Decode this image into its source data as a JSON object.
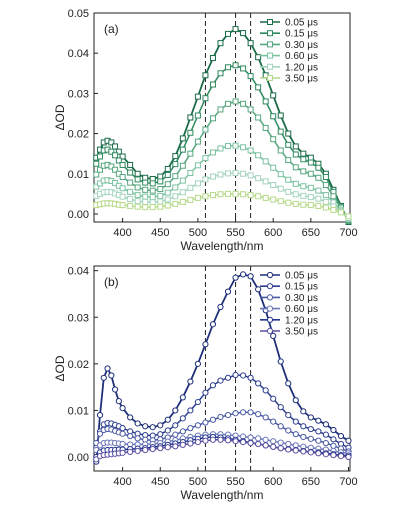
{
  "chart_data": [
    {
      "type": "line",
      "panel_label": "(a)",
      "xlabel": "Wavelength/nm",
      "ylabel": "ΔOD",
      "xlim": [
        362,
        702
      ],
      "ylim": [
        -0.002,
        0.05
      ],
      "xticks": [
        400,
        450,
        500,
        550,
        600,
        650,
        700
      ],
      "yticks": [
        0.0,
        0.01,
        0.02,
        0.03,
        0.04,
        0.05
      ],
      "ytick_labels": [
        "0.00",
        "0.01",
        "0.02",
        "0.03",
        "0.04",
        "0.05"
      ],
      "vlines": [
        510,
        550,
        570
      ],
      "legend_position": "top-right",
      "marker": "square",
      "x": [
        365,
        370,
        375,
        380,
        385,
        390,
        395,
        400,
        410,
        420,
        430,
        440,
        450,
        460,
        470,
        480,
        490,
        500,
        510,
        520,
        530,
        540,
        550,
        560,
        570,
        580,
        590,
        600,
        610,
        620,
        630,
        640,
        650,
        660,
        670,
        680,
        690,
        700
      ],
      "series": [
        {
          "name": "0.05 μs",
          "color": "#1a6b47",
          "values": [
            0.014,
            0.016,
            0.0178,
            0.0182,
            0.0178,
            0.0168,
            0.0155,
            0.0143,
            0.0122,
            0.01,
            0.009,
            0.0087,
            0.0093,
            0.0112,
            0.0144,
            0.0188,
            0.024,
            0.0292,
            0.0345,
            0.0388,
            0.0425,
            0.0448,
            0.046,
            0.045,
            0.0425,
            0.039,
            0.0345,
            0.0295,
            0.0245,
            0.02,
            0.0168,
            0.015,
            0.014,
            0.0125,
            0.01,
            0.006,
            0.002,
            -0.002
          ]
        },
        {
          "name": "0.15 μs",
          "color": "#2e8a5e",
          "values": [
            0.0125,
            0.0143,
            0.0158,
            0.016,
            0.0155,
            0.0146,
            0.0133,
            0.0122,
            0.0103,
            0.0086,
            0.0078,
            0.0076,
            0.0081,
            0.0097,
            0.0124,
            0.016,
            0.0202,
            0.0245,
            0.0288,
            0.0322,
            0.035,
            0.0365,
            0.037,
            0.0362,
            0.0343,
            0.0315,
            0.028,
            0.0243,
            0.0205,
            0.0172,
            0.0148,
            0.0136,
            0.0128,
            0.0115,
            0.0092,
            0.0055,
            0.0018,
            -0.0018
          ]
        },
        {
          "name": "0.30 μs",
          "color": "#56a77d",
          "values": [
            0.0098,
            0.011,
            0.012,
            0.0122,
            0.0118,
            0.011,
            0.01,
            0.0092,
            0.0078,
            0.0066,
            0.006,
            0.0058,
            0.0062,
            0.0074,
            0.0094,
            0.012,
            0.015,
            0.018,
            0.021,
            0.0238,
            0.026,
            0.0274,
            0.028,
            0.0274,
            0.026,
            0.024,
            0.0214,
            0.0186,
            0.0158,
            0.0134,
            0.0116,
            0.0106,
            0.01,
            0.009,
            0.0072,
            0.0044,
            0.0014,
            -0.0015
          ]
        },
        {
          "name": "0.60 μs",
          "color": "#7cc3a0",
          "values": [
            0.0068,
            0.0076,
            0.0083,
            0.0084,
            0.0082,
            0.0077,
            0.007,
            0.0064,
            0.0055,
            0.0047,
            0.0043,
            0.0042,
            0.0045,
            0.0053,
            0.0066,
            0.0083,
            0.0102,
            0.0121,
            0.0139,
            0.0153,
            0.0163,
            0.0169,
            0.017,
            0.0166,
            0.0158,
            0.0146,
            0.0131,
            0.0115,
            0.0099,
            0.0085,
            0.0075,
            0.0069,
            0.0065,
            0.0058,
            0.0047,
            0.0029,
            0.0009,
            -0.0012
          ]
        },
        {
          "name": "1.20 μs",
          "color": "#a4d4be",
          "values": [
            0.0045,
            0.005,
            0.0054,
            0.0055,
            0.0054,
            0.0051,
            0.0047,
            0.0043,
            0.0037,
            0.0032,
            0.003,
            0.0029,
            0.0031,
            0.0036,
            0.0044,
            0.0054,
            0.0065,
            0.0076,
            0.0086,
            0.0093,
            0.0098,
            0.0101,
            0.0102,
            0.01,
            0.0096,
            0.0089,
            0.0081,
            0.0072,
            0.0063,
            0.0055,
            0.0049,
            0.0045,
            0.0042,
            0.0038,
            0.003,
            0.0019,
            0.0006,
            -0.001
          ]
        },
        {
          "name": "3.50 μs",
          "color": "#b6d98a",
          "values": [
            0.0022,
            0.0024,
            0.0026,
            0.0027,
            0.0026,
            0.0025,
            0.0023,
            0.0022,
            0.002,
            0.0018,
            0.0017,
            0.0017,
            0.0018,
            0.0021,
            0.0025,
            0.003,
            0.0035,
            0.004,
            0.0044,
            0.0047,
            0.0049,
            0.005,
            0.005,
            0.0049,
            0.0047,
            0.0044,
            0.004,
            0.0036,
            0.0032,
            0.0028,
            0.0025,
            0.0023,
            0.0022,
            0.002,
            0.0016,
            0.001,
            0.0004,
            -0.0006
          ]
        }
      ]
    },
    {
      "type": "line",
      "panel_label": "(b)",
      "xlabel": "Wavelength/nm",
      "ylabel": "ΔOD",
      "xlim": [
        362,
        702
      ],
      "ylim": [
        -0.003,
        0.041
      ],
      "xticks": [
        400,
        450,
        500,
        550,
        600,
        650,
        700
      ],
      "yticks": [
        0.0,
        0.01,
        0.02,
        0.03,
        0.04
      ],
      "ytick_labels": [
        "0.00",
        "0.01",
        "0.02",
        "0.03",
        "0.04"
      ],
      "vlines": [
        510,
        550,
        570
      ],
      "legend_position": "top-right",
      "marker": "circle",
      "x": [
        365,
        370,
        375,
        380,
        385,
        390,
        395,
        400,
        410,
        420,
        430,
        440,
        450,
        460,
        470,
        480,
        490,
        500,
        510,
        520,
        530,
        540,
        550,
        560,
        570,
        580,
        590,
        600,
        610,
        620,
        630,
        640,
        650,
        660,
        670,
        680,
        690,
        700
      ],
      "series": [
        {
          "name": "0.05 μs",
          "color": "#1f2f7a",
          "values": [
            -0.001,
            0.009,
            0.017,
            0.019,
            0.0175,
            0.0145,
            0.012,
            0.0105,
            0.0085,
            0.0072,
            0.0066,
            0.0064,
            0.0068,
            0.008,
            0.01,
            0.0128,
            0.0162,
            0.02,
            0.0242,
            0.0285,
            0.0322,
            0.0355,
            0.0385,
            0.0392,
            0.0388,
            0.036,
            0.0315,
            0.026,
            0.0205,
            0.0158,
            0.0122,
            0.0098,
            0.0085,
            0.0078,
            0.007,
            0.0058,
            0.0045,
            0.0035
          ]
        },
        {
          "name": "0.15 μs",
          "color": "#2e3f8f",
          "values": [
            0.002,
            0.0055,
            0.007,
            0.0073,
            0.0072,
            0.0069,
            0.0066,
            0.0062,
            0.0055,
            0.005,
            0.0047,
            0.0046,
            0.0049,
            0.0057,
            0.0068,
            0.0083,
            0.01,
            0.0118,
            0.0138,
            0.0154,
            0.0164,
            0.017,
            0.0176,
            0.0175,
            0.017,
            0.0158,
            0.0143,
            0.0125,
            0.0107,
            0.009,
            0.0076,
            0.0066,
            0.006,
            0.0055,
            0.0048,
            0.0038,
            0.0028,
            0.002
          ]
        },
        {
          "name": "0.30 μs",
          "color": "#4a5aa3",
          "values": [
            0.003,
            0.005,
            0.0058,
            0.006,
            0.0059,
            0.0056,
            0.0053,
            0.005,
            0.0045,
            0.004,
            0.0037,
            0.0036,
            0.0038,
            0.0042,
            0.0048,
            0.0055,
            0.0062,
            0.0068,
            0.0074,
            0.008,
            0.0086,
            0.009,
            0.0094,
            0.0096,
            0.0096,
            0.0092,
            0.0085,
            0.0076,
            0.0066,
            0.0057,
            0.0049,
            0.0043,
            0.0039,
            0.0035,
            0.003,
            0.0024,
            0.0018,
            0.0012
          ]
        },
        {
          "name": "0.60 μs",
          "color": "#6b76b8",
          "values": [
            0.0015,
            0.0025,
            0.003,
            0.0031,
            0.0031,
            0.003,
            0.0029,
            0.0028,
            0.0027,
            0.0027,
            0.0027,
            0.0028,
            0.003,
            0.0033,
            0.0036,
            0.004,
            0.0043,
            0.0046,
            0.0048,
            0.0049,
            0.0049,
            0.0048,
            0.0046,
            0.0044,
            0.0042,
            0.004,
            0.0037,
            0.0034,
            0.0031,
            0.0028,
            0.0025,
            0.0022,
            0.002,
            0.0018,
            0.0016,
            0.0013,
            0.001,
            0.0008
          ]
        },
        {
          "name": "1.20 μs",
          "color": "#223590",
          "values": [
            0.0,
            0.001,
            0.0014,
            0.0015,
            0.0015,
            0.0015,
            0.0016,
            0.0016,
            0.0017,
            0.0018,
            0.0019,
            0.0021,
            0.0023,
            0.0026,
            0.0029,
            0.0032,
            0.0036,
            0.0039,
            0.0042,
            0.0043,
            0.0042,
            0.004,
            0.0037,
            0.0034,
            0.0031,
            0.0028,
            0.0025,
            0.0022,
            0.0019,
            0.0017,
            0.0015,
            0.0013,
            0.0011,
            0.001,
            0.0008,
            0.0006,
            0.0004,
            0.0003
          ]
        },
        {
          "name": "3.50 μs",
          "color": "#5a4fa0",
          "values": [
            -0.0005,
            0.0002,
            0.0004,
            0.0005,
            0.0006,
            0.0007,
            0.0008,
            0.0009,
            0.0011,
            0.0013,
            0.0015,
            0.0017,
            0.0019,
            0.0021,
            0.0023,
            0.0026,
            0.0029,
            0.0032,
            0.0035,
            0.0037,
            0.0037,
            0.0036,
            0.0034,
            0.0032,
            0.003,
            0.0028,
            0.0025,
            0.0022,
            0.0019,
            0.0016,
            0.0014,
            0.0012,
            0.001,
            0.0008,
            0.0006,
            0.0004,
            0.0002,
            0.0
          ]
        }
      ]
    }
  ]
}
